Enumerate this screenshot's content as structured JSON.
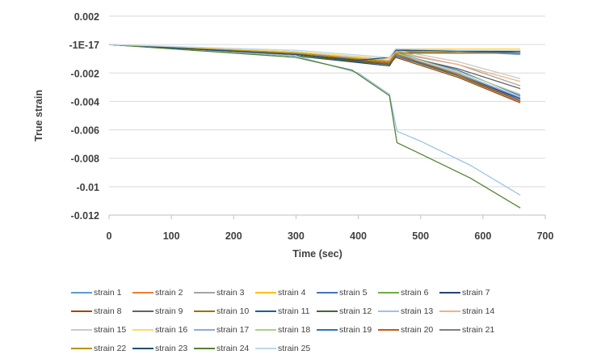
{
  "chart_data": {
    "type": "line",
    "title": "",
    "xlabel": "Time (sec)",
    "ylabel": "True strain",
    "xlim": [
      0,
      700
    ],
    "ylim": [
      -0.012,
      0.002
    ],
    "x_ticks": [
      0,
      100,
      200,
      300,
      400,
      500,
      600,
      700
    ],
    "x_tick_labels": [
      "0",
      "100",
      "200",
      "300",
      "400",
      "500",
      "600",
      "700"
    ],
    "y_ticks": [
      0.002,
      0,
      -0.002,
      -0.004,
      -0.006,
      -0.008,
      -0.01,
      -0.012
    ],
    "y_tick_labels": [
      "0.002",
      "-1E-17",
      "-0.002",
      "-0.004",
      "-0.006",
      "-0.008",
      "-0.01",
      "-0.012"
    ],
    "grid": "horizontal",
    "legend_position": "bottom",
    "series": [
      {
        "name": "strain 1",
        "color": "#5B9BD5",
        "x": [
          0,
          300,
          450,
          460,
          530,
          660
        ],
        "y": [
          0,
          -0.0005,
          -0.0012,
          -0.0003,
          -0.0004,
          -0.0007
        ]
      },
      {
        "name": "strain 2",
        "color": "#ED7D31",
        "x": [
          0,
          300,
          450,
          460,
          550,
          660
        ],
        "y": [
          0,
          -0.0006,
          -0.0013,
          -0.0004,
          -0.0005,
          -0.0006
        ]
      },
      {
        "name": "strain 3",
        "color": "#A5A5A5",
        "x": [
          0,
          300,
          450,
          460,
          560,
          660
        ],
        "y": [
          0,
          -0.0005,
          -0.0011,
          -0.0006,
          -0.0014,
          -0.0029
        ]
      },
      {
        "name": "strain 4",
        "color": "#FFC000",
        "x": [
          0,
          300,
          450,
          460,
          560,
          660
        ],
        "y": [
          0,
          -0.0006,
          -0.0012,
          -0.0005,
          -0.0005,
          -0.0004
        ]
      },
      {
        "name": "strain 5",
        "color": "#4472C4",
        "x": [
          0,
          300,
          450,
          460,
          560,
          660
        ],
        "y": [
          0,
          -0.0007,
          -0.0013,
          -0.0006,
          -0.0018,
          -0.0036
        ]
      },
      {
        "name": "strain 6",
        "color": "#70AD47",
        "x": [
          0,
          300,
          450,
          460,
          560,
          660
        ],
        "y": [
          0,
          -0.0008,
          -0.0014,
          -0.0007,
          -0.0005,
          -0.0005
        ]
      },
      {
        "name": "strain 7",
        "color": "#264478",
        "x": [
          0,
          300,
          450,
          460,
          560,
          660
        ],
        "y": [
          0,
          -0.0008,
          -0.0015,
          -0.0008,
          -0.0021,
          -0.0038
        ]
      },
      {
        "name": "strain 8",
        "color": "#9E480E",
        "x": [
          0,
          300,
          450,
          460,
          560,
          660
        ],
        "y": [
          0,
          -0.0007,
          -0.0014,
          -0.0009,
          -0.0023,
          -0.0041
        ]
      },
      {
        "name": "strain 9",
        "color": "#636363",
        "x": [
          0,
          300,
          450,
          460,
          560,
          660
        ],
        "y": [
          0,
          -0.0006,
          -0.0012,
          -0.0007,
          -0.0017,
          -0.0031
        ]
      },
      {
        "name": "strain 10",
        "color": "#997300",
        "x": [
          0,
          300,
          450,
          460,
          560,
          660
        ],
        "y": [
          0,
          -0.0007,
          -0.0013,
          -0.0006,
          -0.0006,
          -0.0006
        ]
      },
      {
        "name": "strain 11",
        "color": "#255E91",
        "x": [
          0,
          300,
          450,
          460,
          560,
          660
        ],
        "y": [
          0,
          -0.0007,
          -0.0013,
          -0.0005,
          -0.0006,
          -0.0005
        ]
      },
      {
        "name": "strain 12",
        "color": "#43682B",
        "x": [
          0,
          300,
          450,
          460,
          560,
          660
        ],
        "y": [
          0,
          -0.0008,
          -0.0014,
          -0.0008,
          -0.0022,
          -0.004
        ]
      },
      {
        "name": "strain 13",
        "color": "#9DC3E6",
        "x": [
          0,
          300,
          400,
          450,
          462,
          500,
          580,
          660
        ],
        "y": [
          0,
          -0.0008,
          -0.002,
          -0.0035,
          -0.0061,
          -0.0068,
          -0.0085,
          -0.0106
        ]
      },
      {
        "name": "strain 14",
        "color": "#F4B183",
        "x": [
          0,
          300,
          450,
          460,
          560,
          660
        ],
        "y": [
          0,
          -0.0006,
          -0.0011,
          -0.0005,
          -0.0014,
          -0.0026
        ]
      },
      {
        "name": "strain 15",
        "color": "#C9C9C9",
        "x": [
          0,
          300,
          450,
          460,
          560,
          660
        ],
        "y": [
          0,
          -0.0005,
          -0.0011,
          -0.0004,
          -0.0012,
          -0.0024
        ]
      },
      {
        "name": "strain 16",
        "color": "#FFD966",
        "x": [
          0,
          300,
          450,
          460,
          560,
          660
        ],
        "y": [
          0,
          -0.0005,
          -0.001,
          -0.0003,
          -0.0003,
          -0.0003
        ]
      },
      {
        "name": "strain 17",
        "color": "#8FAADC",
        "x": [
          0,
          300,
          450,
          460,
          560,
          660
        ],
        "y": [
          0,
          -0.0006,
          -0.0012,
          -0.0007,
          -0.002,
          -0.0037
        ]
      },
      {
        "name": "strain 18",
        "color": "#A9D18E",
        "x": [
          0,
          300,
          450,
          460,
          560,
          660
        ],
        "y": [
          0,
          -0.0006,
          -0.0012,
          -0.0006,
          -0.0019,
          -0.0035
        ]
      },
      {
        "name": "strain 19",
        "color": "#2E75B6",
        "x": [
          0,
          300,
          450,
          460,
          560,
          660
        ],
        "y": [
          0,
          -0.0007,
          -0.0013,
          -0.0008,
          -0.0021,
          -0.0039
        ]
      },
      {
        "name": "strain 20",
        "color": "#C55A11",
        "x": [
          0,
          300,
          450,
          460,
          560,
          660
        ],
        "y": [
          0,
          -0.0007,
          -0.0013,
          -0.0007,
          -0.0021,
          -0.004
        ]
      },
      {
        "name": "strain 21",
        "color": "#7F7F7F",
        "x": [
          0,
          300,
          450,
          460,
          560,
          660
        ],
        "y": [
          0,
          -0.0006,
          -0.0012,
          -0.0006,
          -0.0006,
          -0.0006
        ]
      },
      {
        "name": "strain 22",
        "color": "#BF9000",
        "x": [
          0,
          300,
          450,
          460,
          560,
          660
        ],
        "y": [
          0,
          -0.0006,
          -0.0012,
          -0.0006,
          -0.0005,
          -0.0005
        ]
      },
      {
        "name": "strain 23",
        "color": "#1F4E79",
        "x": [
          0,
          300,
          400,
          450,
          460,
          480,
          660
        ],
        "y": [
          0,
          -0.0007,
          -0.0011,
          -0.0009,
          -0.0004,
          -0.0004,
          -0.0005
        ]
      },
      {
        "name": "strain 24",
        "color": "#548235",
        "x": [
          0,
          300,
          390,
          450,
          462,
          500,
          580,
          660
        ],
        "y": [
          0,
          -0.0009,
          -0.0018,
          -0.0036,
          -0.0069,
          -0.0077,
          -0.0094,
          -0.0115
        ]
      },
      {
        "name": "strain 25",
        "color": "#BDD7EE",
        "x": [
          0,
          300,
          450,
          460,
          560,
          660
        ],
        "y": [
          0,
          -0.0004,
          -0.0009,
          -0.0003,
          -0.0004,
          -0.0004
        ]
      }
    ]
  }
}
